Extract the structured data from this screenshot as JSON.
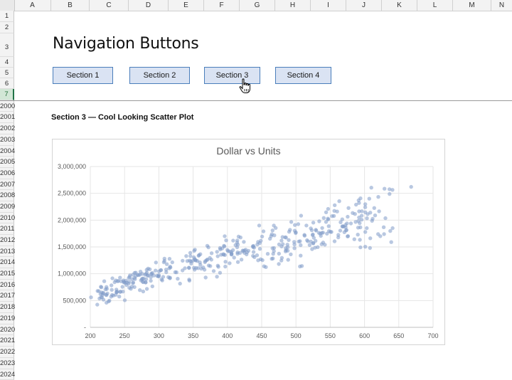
{
  "spreadsheet": {
    "columns": [
      "A",
      "B",
      "C",
      "D",
      "E",
      "F",
      "G",
      "H",
      "I",
      "J",
      "K",
      "L",
      "M",
      "N"
    ],
    "rows": [
      "1",
      "2",
      "3",
      "4",
      "5",
      "6",
      "7",
      "2000",
      "2001",
      "2002",
      "2003",
      "2004",
      "2005",
      "2006",
      "2007",
      "2008",
      "2009",
      "2010",
      "2011",
      "2012",
      "2013",
      "2014",
      "2015",
      "2016",
      "2017",
      "2018",
      "2019",
      "2020",
      "2021",
      "2022",
      "2023",
      "2024"
    ],
    "selected_row": "7"
  },
  "page": {
    "title": "Navigation Buttons",
    "nav_buttons": [
      "Section 1",
      "Section 2",
      "Section 3",
      "Section 4"
    ],
    "section_heading": "Section 3 — Cool Looking Scatter Plot"
  },
  "colors": {
    "marker": "#7f9bc9",
    "gridline": "#e6e6e6",
    "button_fill": "#dae3f3",
    "button_border": "#4a7ebb"
  },
  "icons": {
    "cursor": "hand-pointer-icon"
  },
  "chart_data": {
    "type": "scatter",
    "title": "Dollar vs Units",
    "xlabel": "",
    "ylabel": "",
    "xlim": [
      200,
      700
    ],
    "ylim": [
      0,
      3000000
    ],
    "x_ticks": [
      "200",
      "250",
      "300",
      "350",
      "400",
      "450",
      "500",
      "550",
      "600",
      "650",
      "700"
    ],
    "y_ticks": [
      "-",
      "500,000",
      "1,000,000",
      "1,500,000",
      "2,000,000",
      "2,500,000",
      "3,000,000"
    ],
    "grid": true,
    "trend_points": [
      [
        200,
        550000
      ],
      [
        260,
        850000
      ],
      [
        320,
        1100000
      ],
      [
        380,
        1300000
      ],
      [
        440,
        1450000
      ],
      [
        500,
        1600000
      ],
      [
        560,
        1850000
      ],
      [
        620,
        2100000
      ],
      [
        670,
        2600000
      ]
    ],
    "points_seed": 7,
    "n_points": 420
  }
}
